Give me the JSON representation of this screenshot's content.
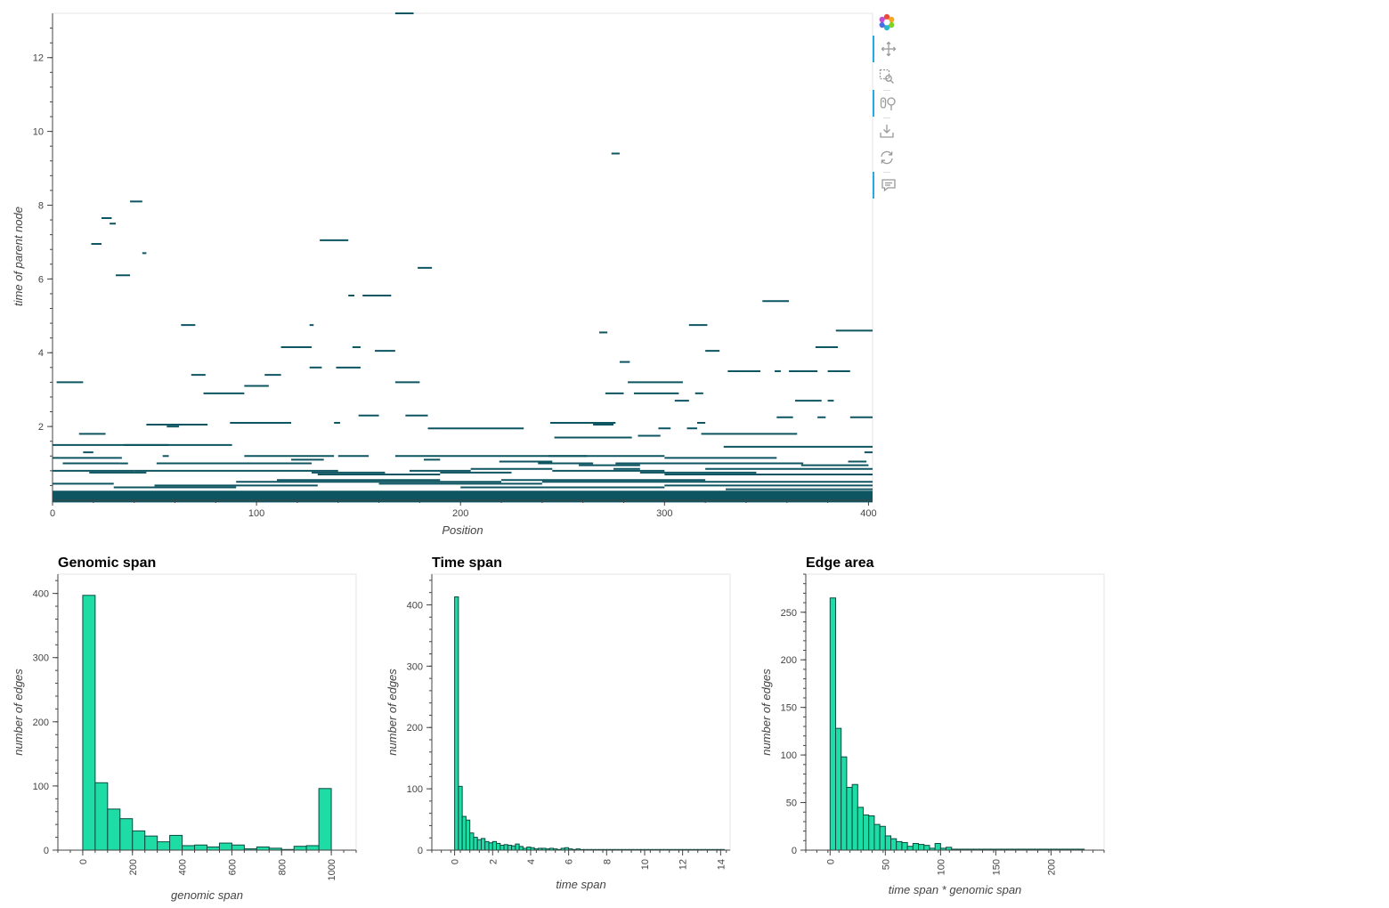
{
  "chart_data": [
    {
      "type": "edge-segments",
      "xlabel": "Position",
      "ylabel": "time of parent node",
      "xlim": [
        0,
        402
      ],
      "ylim": [
        0,
        13.2
      ],
      "xticks": [
        "0",
        "100",
        "200",
        "300",
        "400"
      ],
      "yticks": [
        "2",
        "4",
        "6",
        "8",
        "10",
        "12"
      ],
      "segments": [
        [
          168,
          177,
          13.2
        ],
        [
          274,
          278,
          9.4
        ],
        [
          38,
          44,
          8.1
        ],
        [
          24,
          29,
          7.65
        ],
        [
          28,
          31,
          7.5
        ],
        [
          19,
          24,
          6.95
        ],
        [
          44,
          46,
          6.7
        ],
        [
          31,
          38,
          6.1
        ],
        [
          131,
          145,
          7.05
        ],
        [
          179,
          186,
          6.3
        ],
        [
          145,
          148,
          5.55
        ],
        [
          152,
          166,
          5.55
        ],
        [
          63,
          70,
          4.75
        ],
        [
          126,
          128,
          4.75
        ],
        [
          312,
          321,
          4.75
        ],
        [
          348,
          361,
          5.4
        ],
        [
          268,
          272,
          4.55
        ],
        [
          384,
          402,
          4.6
        ],
        [
          112,
          127,
          4.15
        ],
        [
          147,
          151,
          4.15
        ],
        [
          158,
          168,
          4.05
        ],
        [
          320,
          327,
          4.05
        ],
        [
          374,
          385,
          4.15
        ],
        [
          278,
          283,
          3.75
        ],
        [
          126,
          132,
          3.6
        ],
        [
          139,
          151,
          3.6
        ],
        [
          331,
          347,
          3.5
        ],
        [
          354,
          357,
          3.5
        ],
        [
          361,
          375,
          3.5
        ],
        [
          380,
          391,
          3.5
        ],
        [
          68,
          75,
          3.4
        ],
        [
          104,
          112,
          3.4
        ],
        [
          2,
          15,
          3.2
        ],
        [
          168,
          180,
          3.2
        ],
        [
          282,
          309,
          3.2
        ],
        [
          94,
          106,
          3.1
        ],
        [
          74,
          94,
          2.9
        ],
        [
          271,
          280,
          2.9
        ],
        [
          285,
          307,
          2.9
        ],
        [
          315,
          319,
          2.9
        ],
        [
          305,
          312,
          2.7
        ],
        [
          364,
          377,
          2.7
        ],
        [
          380,
          383,
          2.7
        ],
        [
          150,
          160,
          2.3
        ],
        [
          173,
          184,
          2.3
        ],
        [
          355,
          363,
          2.25
        ],
        [
          375,
          379,
          2.25
        ],
        [
          391,
          402,
          2.25
        ],
        [
          87,
          117,
          2.1
        ],
        [
          138,
          141,
          2.1
        ],
        [
          244,
          276,
          2.1
        ],
        [
          265,
          275,
          2.05
        ],
        [
          316,
          320,
          2.1
        ],
        [
          46,
          76,
          2.05
        ],
        [
          56,
          62,
          2.0
        ],
        [
          184,
          231,
          1.95
        ],
        [
          297,
          303,
          1.95
        ],
        [
          311,
          316,
          1.95
        ],
        [
          13,
          26,
          1.8
        ],
        [
          246,
          284,
          1.7
        ],
        [
          287,
          298,
          1.75
        ],
        [
          318,
          365,
          1.8
        ],
        [
          0,
          88,
          1.5
        ],
        [
          35,
          57,
          1.5
        ],
        [
          329,
          402,
          1.45
        ],
        [
          15,
          20,
          1.3
        ],
        [
          54,
          57,
          1.2
        ],
        [
          94,
          138,
          1.2
        ],
        [
          140,
          155,
          1.2
        ],
        [
          168,
          262,
          1.2
        ],
        [
          182,
          190,
          1.1
        ],
        [
          243,
          300,
          1.2
        ],
        [
          300,
          355,
          1.15
        ],
        [
          390,
          399,
          1.05
        ],
        [
          398,
          402,
          1.3
        ],
        [
          0,
          34,
          1.15
        ],
        [
          5,
          33,
          1.0
        ],
        [
          33,
          37,
          1.0
        ],
        [
          51,
          127,
          1.0
        ],
        [
          117,
          133,
          1.1
        ],
        [
          219,
          245,
          1.05
        ],
        [
          238,
          265,
          1.0
        ],
        [
          258,
          288,
          0.95
        ],
        [
          276,
          368,
          1.0
        ],
        [
          367,
          400,
          0.95
        ],
        [
          0,
          40,
          0.8
        ],
        [
          18,
          46,
          0.75
        ],
        [
          40,
          140,
          0.8
        ],
        [
          127,
          163,
          0.75
        ],
        [
          130,
          190,
          0.7
        ],
        [
          175,
          205,
          0.8
        ],
        [
          190,
          225,
          0.75
        ],
        [
          205,
          245,
          0.85
        ],
        [
          245,
          300,
          0.8
        ],
        [
          275,
          288,
          0.85
        ],
        [
          288,
          345,
          0.75
        ],
        [
          300,
          360,
          0.7
        ],
        [
          320,
          402,
          0.85
        ],
        [
          350,
          402,
          0.7
        ],
        [
          0,
          30,
          0.45
        ],
        [
          30,
          90,
          0.35
        ],
        [
          50,
          130,
          0.4
        ],
        [
          90,
          220,
          0.5
        ],
        [
          110,
          190,
          0.55
        ],
        [
          160,
          240,
          0.45
        ],
        [
          200,
          300,
          0.35
        ],
        [
          220,
          320,
          0.55
        ],
        [
          240,
          402,
          0.5
        ],
        [
          300,
          402,
          0.4
        ],
        [
          330,
          402,
          0.3
        ],
        [
          0,
          402,
          0.15
        ],
        [
          0,
          402,
          0.05
        ]
      ]
    },
    {
      "type": "bar",
      "title": "Genomic span",
      "xlabel": "genomic span",
      "ylabel": "number of edges",
      "bin_width": 50,
      "x_start": 0,
      "xlim": [
        -100,
        1100
      ],
      "ylim": [
        0,
        430
      ],
      "xticks": [
        "0",
        "200",
        "400",
        "600",
        "800",
        "1000"
      ],
      "yticks": [
        "0",
        "100",
        "200",
        "300",
        "400"
      ],
      "values": [
        397,
        105,
        64,
        49,
        30,
        22,
        13,
        23,
        7,
        8,
        5,
        11,
        8,
        2,
        5,
        3,
        1,
        6,
        7,
        96
      ]
    },
    {
      "type": "bar",
      "title": "Time span",
      "xlabel": "time span",
      "ylabel": "number of edges",
      "bin_width": 0.2,
      "x_start": 0,
      "xlim": [
        -1.2,
        14.5
      ],
      "ylim": [
        0,
        450
      ],
      "xticks": [
        "0",
        "2",
        "4",
        "6",
        "8",
        "10",
        "12",
        "14"
      ],
      "yticks": [
        "0",
        "100",
        "200",
        "300",
        "400"
      ],
      "values": [
        413,
        104,
        55,
        49,
        28,
        21,
        17,
        19,
        14,
        12,
        14,
        11,
        8,
        9,
        8,
        7,
        10,
        6,
        3,
        5,
        4,
        2,
        3,
        3,
        2,
        3,
        2,
        1,
        3,
        4,
        2,
        1,
        2,
        1,
        1,
        1,
        1,
        1,
        1,
        1,
        1,
        1,
        1,
        1,
        1,
        1,
        1,
        1,
        1,
        1,
        1,
        1,
        1,
        1,
        1,
        1,
        1,
        1,
        1,
        1,
        1,
        1,
        1,
        1,
        1,
        1,
        1,
        1,
        1,
        1,
        1
      ]
    },
    {
      "type": "bar",
      "title": "Edge area",
      "xlabel": "time span * genomic span",
      "ylabel": "number of edges",
      "bin_width": 5,
      "x_start": 0,
      "xlim": [
        -22,
        248
      ],
      "ylim": [
        0,
        290
      ],
      "xticks": [
        "0",
        "50",
        "100",
        "150",
        "200"
      ],
      "yticks": [
        "0",
        "50",
        "100",
        "150",
        "200",
        "250"
      ],
      "values": [
        265,
        128,
        98,
        66,
        69,
        45,
        37,
        36,
        27,
        25,
        15,
        12,
        9,
        8,
        4,
        7,
        6,
        5,
        2,
        7,
        2,
        3,
        1,
        1,
        1,
        1,
        1,
        1,
        1,
        1,
        1,
        1,
        1,
        1,
        1,
        1,
        1,
        1,
        1,
        1,
        1,
        1,
        1,
        1,
        1,
        1
      ]
    }
  ],
  "colors": {
    "segment": "#0d5561",
    "bar_fill": "#1ddca4",
    "bar_stroke": "#0a4b43",
    "axis": "#444444"
  },
  "toolbar": {
    "tools": [
      {
        "icon": "bokeh-logo-icon",
        "active": false
      },
      {
        "icon": "pan-icon",
        "active": true
      },
      {
        "icon": "box-zoom-icon",
        "active": false
      },
      {
        "icon": "wheel-zoom-icon",
        "active": true
      },
      {
        "icon": "save-icon",
        "active": false
      },
      {
        "icon": "reset-icon",
        "active": false
      },
      {
        "icon": "hover-icon",
        "active": true
      }
    ]
  }
}
